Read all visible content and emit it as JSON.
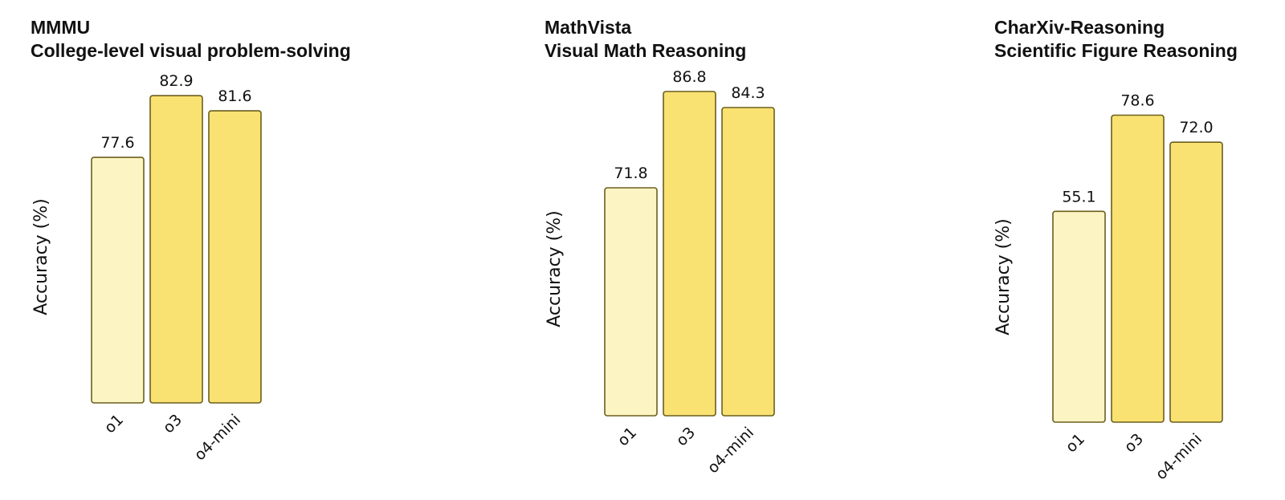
{
  "chart_data": [
    {
      "type": "bar",
      "title": "MMMU",
      "subtitle": "College-level visual problem-solving",
      "ylabel": "Accuracy (%)",
      "categories": [
        "o1",
        "o3",
        "o4-mini"
      ],
      "values": [
        77.6,
        82.9,
        81.6
      ],
      "colors": [
        "#FDF4C3",
        "#F9E272",
        "#F9E272"
      ],
      "ylim": [
        0,
        100
      ],
      "grid": false
    },
    {
      "type": "bar",
      "title": "MathVista",
      "subtitle": "Visual Math Reasoning",
      "ylabel": "Accuracy (%)",
      "categories": [
        "o1",
        "o3",
        "o4-mini"
      ],
      "values": [
        71.8,
        86.8,
        84.3
      ],
      "colors": [
        "#FDF4C3",
        "#F9E272",
        "#F9E272"
      ],
      "ylim": [
        0,
        100
      ],
      "grid": false
    },
    {
      "type": "bar",
      "title": "CharXiv-Reasoning",
      "subtitle": "Scientific Figure Reasoning",
      "ylabel": "Accuracy (%)",
      "categories": [
        "o1",
        "o3",
        "o4-mini"
      ],
      "values": [
        55.1,
        78.6,
        72.0
      ],
      "colors": [
        "#FDF4C3",
        "#F9E272",
        "#F9E272"
      ],
      "ylim": [
        0,
        100
      ],
      "grid": false
    }
  ],
  "style": {
    "bar_outline": "#6B5E1E",
    "text": "#111111"
  }
}
